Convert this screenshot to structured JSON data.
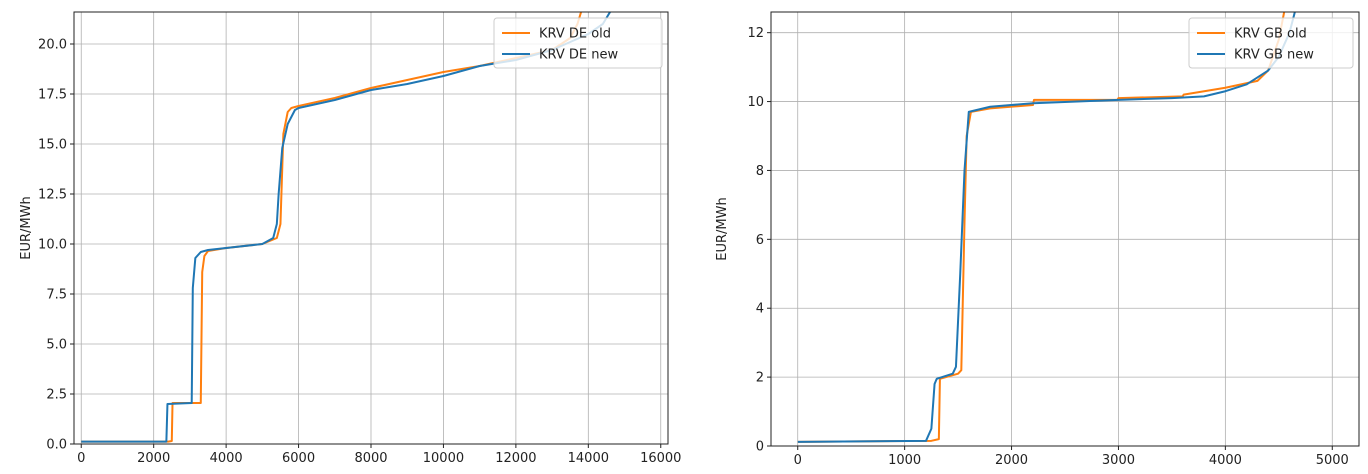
{
  "colors": {
    "old": "#ff7f0e",
    "new": "#1f77b4"
  },
  "chart_data": [
    {
      "type": "line",
      "xlabel": "",
      "ylabel": "EUR/MWh",
      "xlim": [
        -200,
        16200
      ],
      "ylim": [
        0,
        21.6
      ],
      "xticks": [
        0,
        2000,
        4000,
        6000,
        8000,
        10000,
        12000,
        14000,
        16000
      ],
      "xtick_labels": [
        "0",
        "2000",
        "4000",
        "6000",
        "8000",
        "10000",
        "12000",
        "14000",
        "16000"
      ],
      "yticks": [
        0.0,
        2.5,
        5.0,
        7.5,
        10.0,
        12.5,
        15.0,
        17.5,
        20.0
      ],
      "ytick_labels": [
        "0.0",
        "2.5",
        "5.0",
        "7.5",
        "10.0",
        "12.5",
        "15.0",
        "17.5",
        "20.0"
      ],
      "grid": true,
      "legend_position": "top-right",
      "series": [
        {
          "name": "KRV DE old",
          "color_key": "old",
          "x": [
            0,
            2400,
            2500,
            2520,
            3300,
            3340,
            3400,
            3500,
            4000,
            5000,
            5400,
            5500,
            5580,
            5700,
            5800,
            6000,
            7000,
            8000,
            9000,
            10000,
            11000,
            12000,
            13000,
            13500,
            13700,
            13800
          ],
          "y": [
            0.12,
            0.12,
            0.15,
            2.05,
            2.05,
            8.6,
            9.4,
            9.65,
            9.8,
            10.0,
            10.3,
            11.0,
            15.5,
            16.6,
            16.8,
            16.9,
            17.3,
            17.8,
            18.2,
            18.6,
            18.9,
            19.3,
            19.7,
            20.3,
            21.0,
            21.6
          ]
        },
        {
          "name": "KRV DE new",
          "color_key": "new",
          "x": [
            0,
            2350,
            2380,
            3050,
            3080,
            3150,
            3300,
            3500,
            4000,
            5000,
            5300,
            5400,
            5450,
            5550,
            5700,
            5900,
            6000,
            7000,
            8000,
            9000,
            10000,
            11000,
            12000,
            13000,
            14000,
            14400,
            14600
          ],
          "y": [
            0.12,
            0.12,
            2.0,
            2.05,
            7.8,
            9.3,
            9.6,
            9.7,
            9.8,
            10.0,
            10.3,
            11.0,
            12.5,
            14.8,
            16.0,
            16.7,
            16.8,
            17.2,
            17.7,
            18.0,
            18.4,
            18.9,
            19.2,
            19.7,
            20.5,
            21.0,
            21.6
          ]
        }
      ]
    },
    {
      "type": "line",
      "xlabel": "",
      "ylabel": "EUR/MWh",
      "xlim": [
        -250,
        5250
      ],
      "ylim": [
        0,
        12.6
      ],
      "xticks": [
        0,
        1000,
        2000,
        3000,
        4000,
        5000
      ],
      "xtick_labels": [
        "0",
        "1000",
        "2000",
        "3000",
        "4000",
        "5000"
      ],
      "yticks": [
        0,
        2,
        4,
        6,
        8,
        10,
        12
      ],
      "ytick_labels": [
        "0",
        "2",
        "4",
        "6",
        "8",
        "10",
        "12"
      ],
      "grid": true,
      "legend_position": "top-right",
      "series": [
        {
          "name": "KRV GB old",
          "color_key": "old",
          "x": [
            0,
            1250,
            1320,
            1330,
            1500,
            1530,
            1560,
            1580,
            1620,
            1800,
            2200,
            2210,
            2990,
            3000,
            3600,
            3610,
            4000,
            4300,
            4400,
            4500,
            4550
          ],
          "y": [
            0.12,
            0.15,
            0.2,
            1.95,
            2.1,
            2.2,
            6.5,
            9.0,
            9.7,
            9.8,
            9.9,
            10.05,
            10.05,
            10.1,
            10.15,
            10.2,
            10.4,
            10.6,
            10.9,
            11.8,
            12.6
          ]
        },
        {
          "name": "KRV GB new",
          "color_key": "new",
          "x": [
            0,
            1200,
            1250,
            1280,
            1300,
            1450,
            1480,
            1520,
            1560,
            1600,
            1800,
            2200,
            3000,
            3500,
            3800,
            4000,
            4200,
            4400,
            4500,
            4600,
            4650
          ],
          "y": [
            0.12,
            0.15,
            0.5,
            1.8,
            1.95,
            2.1,
            2.3,
            5.0,
            8.0,
            9.7,
            9.85,
            9.95,
            10.05,
            10.1,
            10.15,
            10.3,
            10.5,
            10.9,
            11.3,
            12.0,
            12.6
          ]
        }
      ]
    }
  ]
}
